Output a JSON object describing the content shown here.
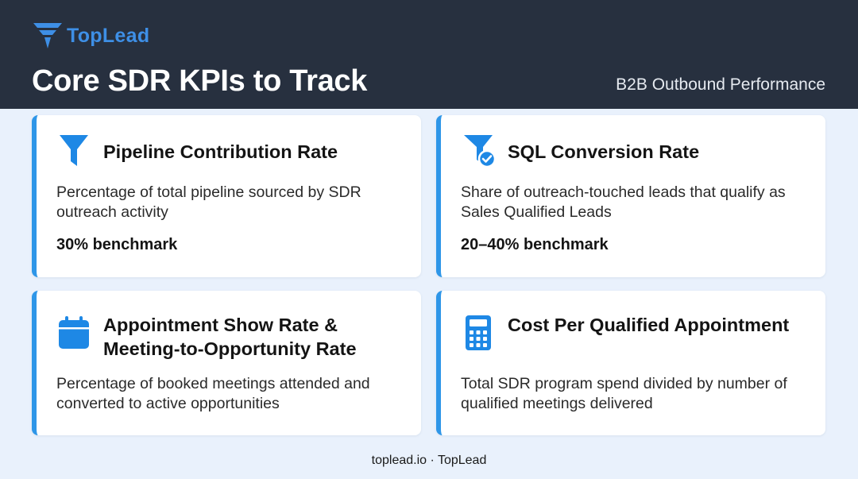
{
  "brand": {
    "name": "TopLead",
    "logo_icon": "funnel-logo-icon",
    "accent": "#3E8FE6"
  },
  "header": {
    "title": "Core SDR KPIs to Track",
    "subtitle": "B2B Outbound Performance",
    "background": "#27303F"
  },
  "cards": [
    {
      "icon": "funnel-icon",
      "title": "Pipeline Contribution Rate",
      "description": "Percentage of total pipeline sourced by SDR outreach activity",
      "benchmark": "30% benchmark"
    },
    {
      "icon": "funnel-check-icon",
      "title": "SQL Conversion Rate",
      "description": "Share of outreach-touched leads that qualify as Sales Qualified Leads",
      "benchmark": "20–40% benchmark"
    },
    {
      "icon": "calendar-icon",
      "title": "Appointment Show Rate & Meeting-to-Opportunity Rate",
      "description": "Percentage of booked meetings attended and converted to active opportunities"
    },
    {
      "icon": "calculator-icon",
      "title": "Cost Per Qualified Appointment",
      "description": "Total SDR program spend divided by number of qualified meetings delivered"
    }
  ],
  "colors": {
    "card_accent": "#2E96E8",
    "icon_blue": "#1E88E5",
    "page_bg": "#E9F1FC"
  },
  "footer": {
    "text": "toplead.io · TopLead"
  }
}
